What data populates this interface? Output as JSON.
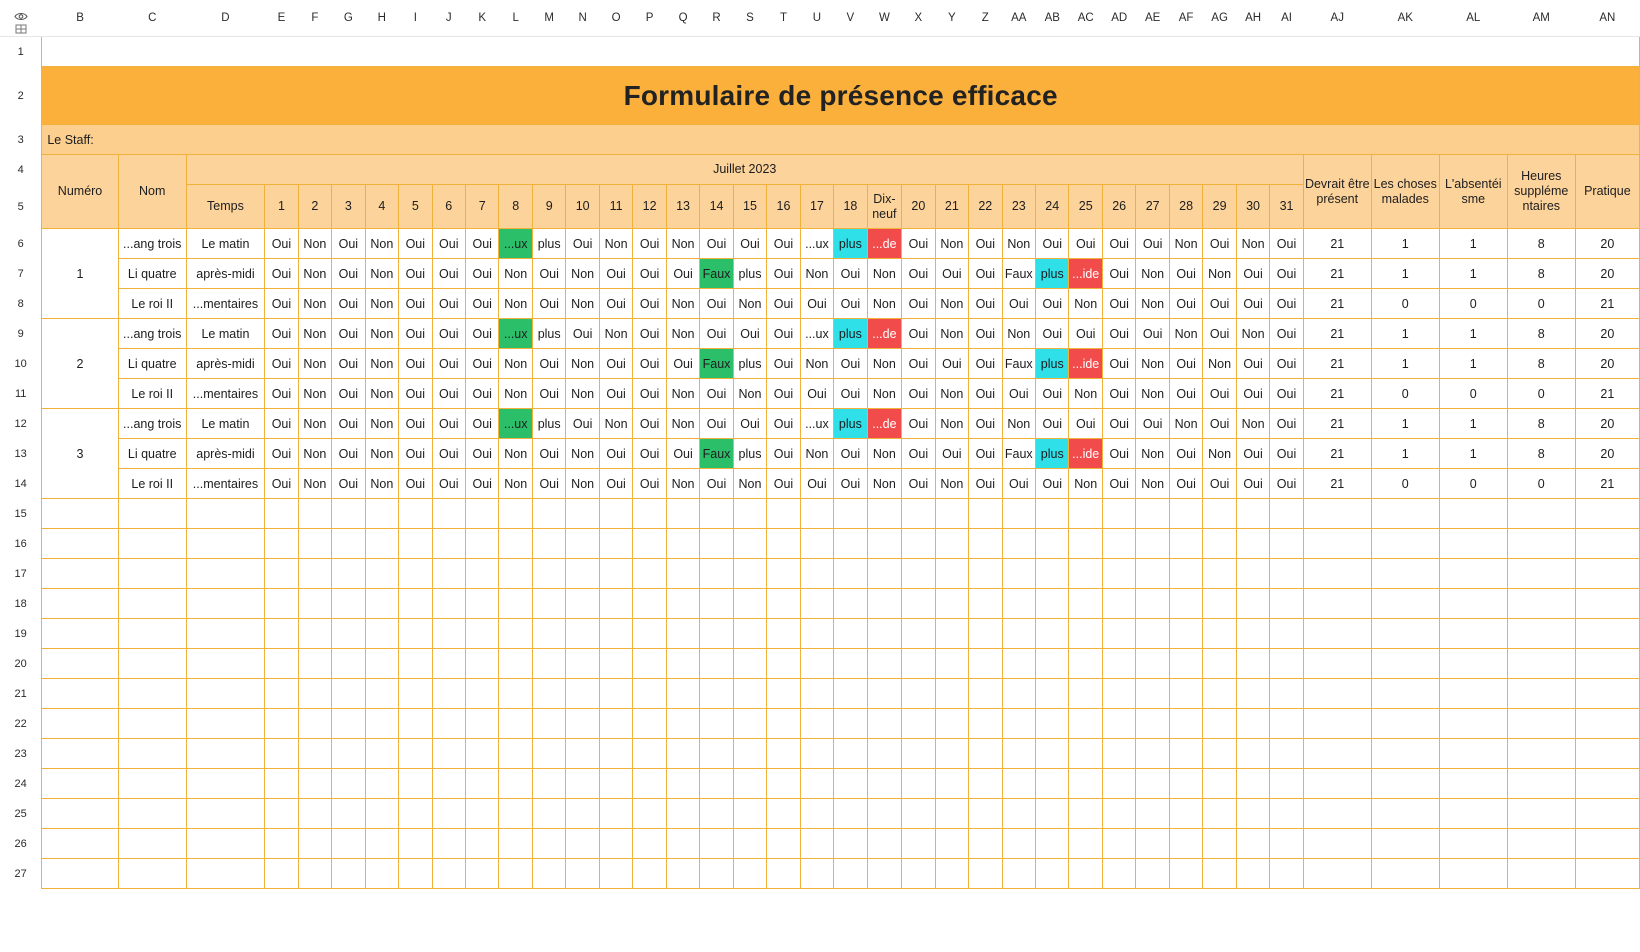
{
  "columns": [
    "B",
    "C",
    "D",
    "E",
    "F",
    "G",
    "H",
    "I",
    "J",
    "K",
    "L",
    "M",
    "N",
    "O",
    "P",
    "Q",
    "R",
    "S",
    "T",
    "U",
    "V",
    "W",
    "X",
    "Y",
    "Z",
    "AA",
    "AB",
    "AC",
    "AD",
    "AE",
    "AF",
    "AG",
    "AH",
    "AI",
    "AJ",
    "AK",
    "AL",
    "AM",
    "AN"
  ],
  "row_numbers": [
    "1",
    "2",
    "3",
    "4",
    "5",
    "6",
    "7",
    "8",
    "9",
    "10",
    "11",
    "12",
    "13",
    "14",
    "15",
    "16",
    "17",
    "18",
    "19",
    "20",
    "21",
    "22",
    "23",
    "24",
    "25",
    "26",
    "27"
  ],
  "title": "Formulaire de présence efficace",
  "staff_label": "Le Staff:",
  "headers": {
    "numero": "Numéro",
    "nom": "Nom",
    "temps": "Temps",
    "month": "Juillet 2023",
    "days": [
      "1",
      "2",
      "3",
      "4",
      "5",
      "6",
      "7",
      "8",
      "9",
      "10",
      "11",
      "12",
      "13",
      "14",
      "15",
      "16",
      "17",
      "18",
      "Dix-neuf",
      "20",
      "21",
      "22",
      "23",
      "24",
      "25",
      "26",
      "27",
      "28",
      "29",
      "30",
      "31"
    ],
    "devrait": "Devrait être présent",
    "malades": "Les choses malades",
    "absenteisme": "L'absentéi sme",
    "heures": "Heures suppléme ntaires",
    "pratique": "Pratique"
  },
  "colors": {
    "green": "#2bbf6a",
    "cyan": "#2fe0e8",
    "red": "#f24b4b",
    "title_bg": "#fbb03b",
    "header_bg": "#fcd39a",
    "grid": "#f0b23a"
  },
  "groups": [
    {
      "numero": "1",
      "rows": [
        {
          "nom": "...ang trois",
          "temps": "Le matin",
          "days": [
            "Oui",
            "Non",
            "Oui",
            "Non",
            "Oui",
            "Oui",
            "Oui",
            "...ux",
            "plus",
            "Oui",
            "Non",
            "Oui",
            "Non",
            "Oui",
            "Oui",
            "Oui",
            "...ux",
            "plus",
            "...de",
            "Oui",
            "Non",
            "Oui",
            "Non",
            "Oui",
            "Oui",
            "Oui",
            "Oui",
            "Non",
            "Oui",
            "Non",
            "Oui"
          ],
          "colors": {
            "7": "green",
            "17": "cyan",
            "18": "red"
          },
          "devrait": "21",
          "malades": "1",
          "absenteisme": "1",
          "heures": "8",
          "pratique": "20"
        },
        {
          "nom": "Li quatre",
          "temps": "après-midi",
          "days": [
            "Oui",
            "Non",
            "Oui",
            "Non",
            "Oui",
            "Oui",
            "Oui",
            "Non",
            "Oui",
            "Non",
            "Oui",
            "Oui",
            "Oui",
            "Faux",
            "plus",
            "Oui",
            "Non",
            "Oui",
            "Non",
            "Oui",
            "Oui",
            "Oui",
            "Faux",
            "plus",
            "...ide",
            "Oui",
            "Non",
            "Oui",
            "Non",
            "Oui",
            "Oui"
          ],
          "colors": {
            "13": "green",
            "23": "cyan",
            "24": "red"
          },
          "devrait": "21",
          "malades": "1",
          "absenteisme": "1",
          "heures": "8",
          "pratique": "20"
        },
        {
          "nom": "Le roi II",
          "temps": "...mentaires",
          "days": [
            "Oui",
            "Non",
            "Oui",
            "Non",
            "Oui",
            "Oui",
            "Oui",
            "Non",
            "Oui",
            "Non",
            "Oui",
            "Oui",
            "Non",
            "Oui",
            "Non",
            "Oui",
            "Oui",
            "Oui",
            "Non",
            "Oui",
            "Non",
            "Oui",
            "Oui",
            "Oui",
            "Non",
            "Oui",
            "Non",
            "Oui",
            "Oui",
            "Oui",
            "Oui"
          ],
          "colors": {},
          "devrait": "21",
          "malades": "0",
          "absenteisme": "0",
          "heures": "0",
          "pratique": "21"
        }
      ]
    },
    {
      "numero": "2",
      "rows": [
        {
          "nom": "...ang trois",
          "temps": "Le matin",
          "days": [
            "Oui",
            "Non",
            "Oui",
            "Non",
            "Oui",
            "Oui",
            "Oui",
            "...ux",
            "plus",
            "Oui",
            "Non",
            "Oui",
            "Non",
            "Oui",
            "Oui",
            "Oui",
            "...ux",
            "plus",
            "...de",
            "Oui",
            "Non",
            "Oui",
            "Non",
            "Oui",
            "Oui",
            "Oui",
            "Oui",
            "Non",
            "Oui",
            "Non",
            "Oui"
          ],
          "colors": {
            "7": "green",
            "17": "cyan",
            "18": "red"
          },
          "devrait": "21",
          "malades": "1",
          "absenteisme": "1",
          "heures": "8",
          "pratique": "20"
        },
        {
          "nom": "Li quatre",
          "temps": "après-midi",
          "days": [
            "Oui",
            "Non",
            "Oui",
            "Non",
            "Oui",
            "Oui",
            "Oui",
            "Non",
            "Oui",
            "Non",
            "Oui",
            "Oui",
            "Oui",
            "Faux",
            "plus",
            "Oui",
            "Non",
            "Oui",
            "Non",
            "Oui",
            "Oui",
            "Oui",
            "Faux",
            "plus",
            "...ide",
            "Oui",
            "Non",
            "Oui",
            "Non",
            "Oui",
            "Oui"
          ],
          "colors": {
            "13": "green",
            "23": "cyan",
            "24": "red"
          },
          "devrait": "21",
          "malades": "1",
          "absenteisme": "1",
          "heures": "8",
          "pratique": "20"
        },
        {
          "nom": "Le roi II",
          "temps": "...mentaires",
          "days": [
            "Oui",
            "Non",
            "Oui",
            "Non",
            "Oui",
            "Oui",
            "Oui",
            "Non",
            "Oui",
            "Non",
            "Oui",
            "Oui",
            "Non",
            "Oui",
            "Non",
            "Oui",
            "Oui",
            "Oui",
            "Non",
            "Oui",
            "Non",
            "Oui",
            "Oui",
            "Oui",
            "Non",
            "Oui",
            "Non",
            "Oui",
            "Oui",
            "Oui",
            "Oui"
          ],
          "colors": {},
          "devrait": "21",
          "malades": "0",
          "absenteisme": "0",
          "heures": "0",
          "pratique": "21"
        }
      ]
    },
    {
      "numero": "3",
      "rows": [
        {
          "nom": "...ang trois",
          "temps": "Le matin",
          "days": [
            "Oui",
            "Non",
            "Oui",
            "Non",
            "Oui",
            "Oui",
            "Oui",
            "...ux",
            "plus",
            "Oui",
            "Non",
            "Oui",
            "Non",
            "Oui",
            "Oui",
            "Oui",
            "...ux",
            "plus",
            "...de",
            "Oui",
            "Non",
            "Oui",
            "Non",
            "Oui",
            "Oui",
            "Oui",
            "Oui",
            "Non",
            "Oui",
            "Non",
            "Oui"
          ],
          "colors": {
            "7": "green",
            "17": "cyan",
            "18": "red"
          },
          "devrait": "21",
          "malades": "1",
          "absenteisme": "1",
          "heures": "8",
          "pratique": "20"
        },
        {
          "nom": "Li quatre",
          "temps": "après-midi",
          "days": [
            "Oui",
            "Non",
            "Oui",
            "Non",
            "Oui",
            "Oui",
            "Oui",
            "Non",
            "Oui",
            "Non",
            "Oui",
            "Oui",
            "Oui",
            "Faux",
            "plus",
            "Oui",
            "Non",
            "Oui",
            "Non",
            "Oui",
            "Oui",
            "Oui",
            "Faux",
            "plus",
            "...ide",
            "Oui",
            "Non",
            "Oui",
            "Non",
            "Oui",
            "Oui"
          ],
          "colors": {
            "13": "green",
            "23": "cyan",
            "24": "red"
          },
          "devrait": "21",
          "malades": "1",
          "absenteisme": "1",
          "heures": "8",
          "pratique": "20"
        },
        {
          "nom": "Le roi II",
          "temps": "...mentaires",
          "days": [
            "Oui",
            "Non",
            "Oui",
            "Non",
            "Oui",
            "Oui",
            "Oui",
            "Non",
            "Oui",
            "Non",
            "Oui",
            "Oui",
            "Non",
            "Oui",
            "Non",
            "Oui",
            "Oui",
            "Oui",
            "Non",
            "Oui",
            "Non",
            "Oui",
            "Oui",
            "Oui",
            "Non",
            "Oui",
            "Non",
            "Oui",
            "Oui",
            "Oui",
            "Oui"
          ],
          "colors": {},
          "devrait": "21",
          "malades": "0",
          "absenteisme": "0",
          "heures": "0",
          "pratique": "21"
        }
      ]
    }
  ]
}
